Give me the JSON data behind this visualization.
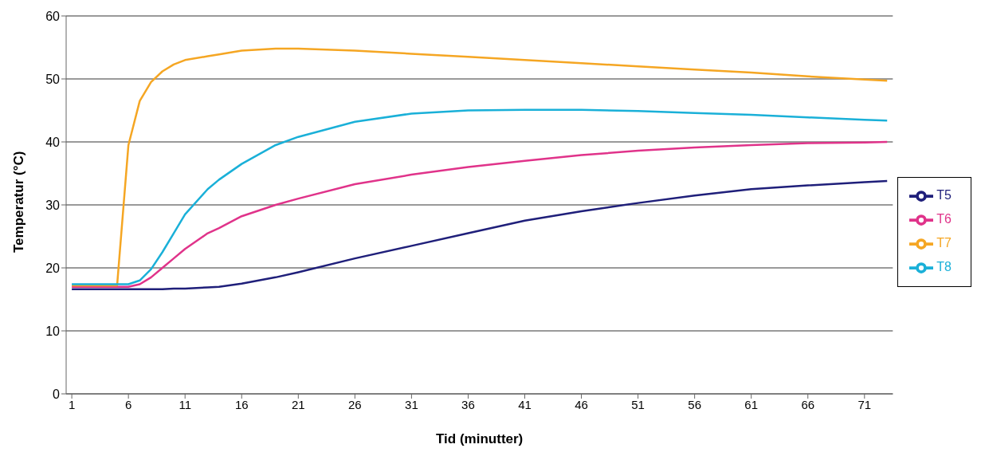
{
  "chart_data": {
    "type": "line",
    "xlabel": "Tid (minutter)",
    "ylabel": "Temperatur (°C)",
    "x": [
      1,
      4,
      5,
      6,
      7,
      8,
      9,
      10,
      11,
      13,
      14,
      16,
      19,
      21,
      26,
      31,
      36,
      41,
      46,
      51,
      56,
      61,
      66,
      71,
      73
    ],
    "xlim": [
      0.5,
      73.5
    ],
    "xticks": [
      1,
      6,
      11,
      16,
      21,
      26,
      31,
      36,
      41,
      46,
      51,
      56,
      61,
      66,
      71
    ],
    "ylim": [
      0,
      60
    ],
    "yticks": [
      0,
      10,
      20,
      30,
      40,
      50,
      60
    ],
    "grid": "y",
    "legend": "right",
    "marker": "none",
    "line_style": "solid",
    "series": [
      {
        "name": "T5",
        "color": "#1f1f7a",
        "values": [
          16.6,
          16.6,
          16.6,
          16.6,
          16.6,
          16.6,
          16.6,
          16.7,
          16.7,
          16.9,
          17.0,
          17.5,
          18.5,
          19.3,
          21.5,
          23.5,
          25.5,
          27.5,
          29.0,
          30.3,
          31.5,
          32.5,
          33.1,
          33.6,
          33.8
        ]
      },
      {
        "name": "T6",
        "color": "#e0338a",
        "values": [
          17.0,
          17.0,
          17.0,
          17.0,
          17.4,
          18.5,
          20.0,
          21.5,
          23.0,
          25.5,
          26.3,
          28.2,
          30.0,
          31.0,
          33.3,
          34.8,
          36.0,
          37.0,
          37.9,
          38.6,
          39.1,
          39.5,
          39.8,
          39.9,
          40.0
        ]
      },
      {
        "name": "T7",
        "color": "#f5a623",
        "values": [
          17.2,
          17.2,
          17.2,
          39.5,
          46.5,
          49.5,
          51.2,
          52.3,
          53.0,
          53.6,
          53.9,
          54.5,
          54.8,
          54.8,
          54.5,
          54.0,
          53.5,
          53.0,
          52.5,
          52.0,
          51.5,
          51.0,
          50.4,
          49.9,
          49.7
        ]
      },
      {
        "name": "T8",
        "color": "#1ab0d8",
        "values": [
          17.4,
          17.4,
          17.4,
          17.4,
          18.0,
          19.8,
          22.5,
          25.5,
          28.5,
          32.5,
          34.0,
          36.5,
          39.5,
          40.8,
          43.2,
          44.5,
          45.0,
          45.1,
          45.1,
          44.9,
          44.6,
          44.3,
          43.9,
          43.5,
          43.4
        ]
      }
    ]
  }
}
